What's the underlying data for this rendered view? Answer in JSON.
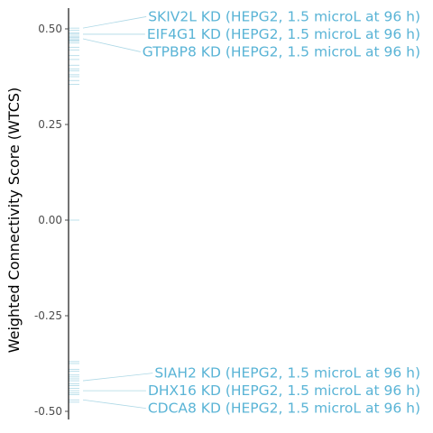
{
  "chart_data": {
    "type": "scatter",
    "title": "",
    "xlabel": "",
    "ylabel": "Weighted Connectivity Score (WTCS)",
    "ylim": [
      -0.52,
      0.55
    ],
    "y_ticks": [
      0.5,
      0.25,
      0.0,
      -0.25,
      -0.5
    ],
    "y_tick_labels": [
      "0.50",
      "0.25",
      "0.00",
      "-0.25",
      "-0.50"
    ],
    "grid": false,
    "legend": "none",
    "colors": {
      "points": "#add8e6",
      "labels": "#5ab4d6",
      "axis": "#000000",
      "ticks": "#4d4d4d"
    },
    "points": [
      0.502,
      0.496,
      0.489,
      0.486,
      0.481,
      0.478,
      0.474,
      0.471,
      0.468,
      0.463,
      0.452,
      0.445,
      0.43,
      0.42,
      0.405,
      0.395,
      0.39,
      0.38,
      0.375,
      0.365,
      0.355,
      0.0,
      -0.37,
      -0.375,
      -0.39,
      -0.395,
      -0.405,
      -0.41,
      -0.415,
      -0.42,
      -0.428,
      -0.433,
      -0.44,
      -0.446,
      -0.452,
      -0.456,
      -0.47,
      -0.476
    ],
    "annotations": [
      {
        "label": "SKIV2L KD (HEPG2, 1.5 microL at 96 h)",
        "y": 0.502,
        "label_y": 0.532
      },
      {
        "label": "EIF4G1 KD (HEPG2, 1.5 microL at 96 h)",
        "y": 0.486,
        "label_y": 0.486
      },
      {
        "label": "GTPBP8 KD (HEPG2, 1.5 microL at 96 h)",
        "y": 0.474,
        "label_y": 0.44
      },
      {
        "label": "SIAH2 KD (HEPG2, 1.5 microL at 96 h)",
        "y": -0.42,
        "label_y": -0.4
      },
      {
        "label": "DHX16 KD (HEPG2, 1.5 microL at 96 h)",
        "y": -0.446,
        "label_y": -0.446
      },
      {
        "label": "CDCA8 KD (HEPG2, 1.5 microL at 96 h)",
        "y": -0.47,
        "label_y": -0.492
      }
    ]
  }
}
